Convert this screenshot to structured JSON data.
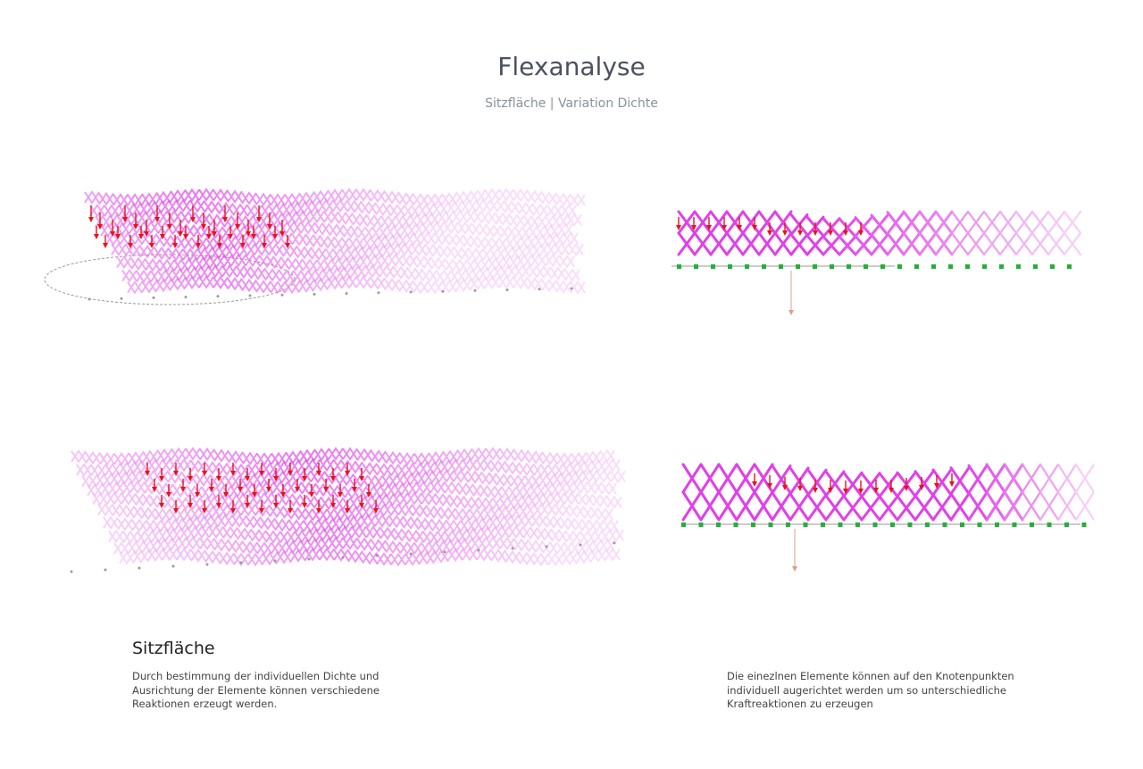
{
  "header": {
    "title": "Flexanalyse",
    "subtitle": "Sitzfläche | Variation Dichte"
  },
  "section": {
    "heading": "Sitzfläche"
  },
  "descriptions": {
    "left": [
      "Durch bestimmung der individuellen Dichte und",
      "Ausrichtung der Elemente können verschiedene",
      "Reaktionen erzeugt werden."
    ],
    "right": [
      "Die einezlnen Elemente können auf den Knotenpunkten",
      "individuell augerichtet werden um so unterschiedliche",
      "Kraftreaktionen zu erzeugen"
    ]
  },
  "colors": {
    "lattice_dense": "#e040e8",
    "lattice_light": "#f6cff7",
    "load_arrow": "#e8121a",
    "support": "#22b03a",
    "reaction_arrow": "#d8a08c",
    "ground_line": "#9a9a9a"
  },
  "panels": {
    "top_perspective": {
      "name": "perspective-view-top"
    },
    "top_side": {
      "name": "side-view-top"
    },
    "bottom_perspective": {
      "name": "perspective-view-bottom"
    },
    "bottom_side": {
      "name": "side-view-bottom"
    }
  }
}
